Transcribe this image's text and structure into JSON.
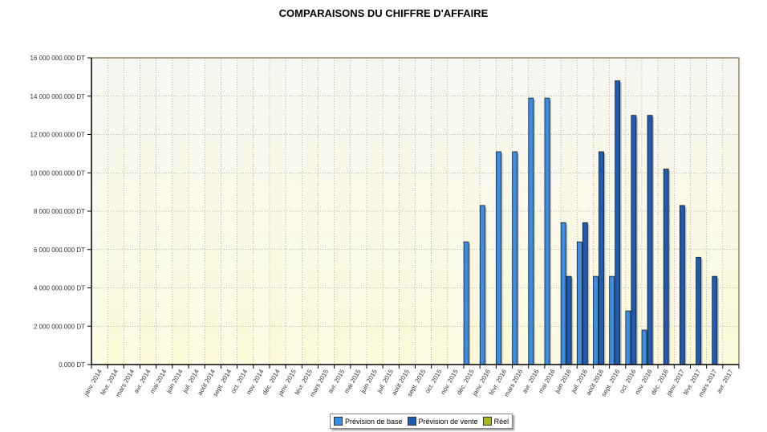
{
  "chart_data": {
    "type": "bar",
    "title": "COMPARAISONS DU CHIFFRE D'AFFAIRE",
    "xlabel": "",
    "ylabel": "",
    "ylim": [
      0,
      16000000000
    ],
    "yticks": [
      {
        "value": 0,
        "label": "0.000 DT"
      },
      {
        "value": 2000000000,
        "label": "2 000 000.000 DT"
      },
      {
        "value": 4000000000,
        "label": "4 000 000.000 DT"
      },
      {
        "value": 6000000000,
        "label": "6 000 000.000 DT"
      },
      {
        "value": 8000000000,
        "label": "8 000 000.000 DT"
      },
      {
        "value": 10000000000,
        "label": "10 000 000.000 DT"
      },
      {
        "value": 12000000000,
        "label": "12 000 000.000 DT"
      },
      {
        "value": 14000000000,
        "label": "14 000 000.000 DT"
      },
      {
        "value": 16000000000,
        "label": "16 000 000.000 DT"
      }
    ],
    "grid": true,
    "legend_position": "bottom",
    "categories": [
      "janv. 2014",
      "févr. 2014",
      "mars 2014",
      "avr. 2014",
      "mai 2014",
      "juin 2014",
      "juil. 2014",
      "août 2014",
      "sept. 2014",
      "oct. 2014",
      "nov. 2014",
      "déc. 2014",
      "janv. 2015",
      "févr. 2015",
      "mars 2015",
      "avr. 2015",
      "mai 2015",
      "juin 2015",
      "juil. 2015",
      "août 2015",
      "sept. 2015",
      "oct. 2015",
      "nov. 2015",
      "déc. 2015",
      "janv. 2016",
      "févr. 2016",
      "mars 2016",
      "avr. 2016",
      "mai 2016",
      "juin 2016",
      "juil. 2016",
      "août 2016",
      "sept. 2016",
      "oct. 2016",
      "nov. 2016",
      "déc. 2016",
      "janv. 2017",
      "févr. 2017",
      "mars 2017",
      "avr. 2017"
    ],
    "series": [
      {
        "name": "Prévision de base",
        "color": "#3b8ee6",
        "values": [
          0,
          0,
          0,
          0,
          0,
          0,
          0,
          0,
          0,
          0,
          0,
          0,
          0,
          0,
          0,
          0,
          0,
          0,
          0,
          0,
          0,
          0,
          0,
          6400000000,
          8300000000,
          11100000000,
          11100000000,
          13900000000,
          13900000000,
          7400000000,
          6400000000,
          4600000000,
          4600000000,
          2800000000,
          1800000000,
          0,
          0,
          0,
          0,
          0
        ]
      },
      {
        "name": "Prévision de vente",
        "color": "#1f5bb5",
        "values": [
          0,
          0,
          0,
          0,
          0,
          0,
          0,
          0,
          0,
          0,
          0,
          0,
          0,
          0,
          0,
          0,
          0,
          0,
          0,
          0,
          0,
          0,
          0,
          0,
          0,
          0,
          0,
          0,
          0,
          4600000000,
          7400000000,
          11100000000,
          14800000000,
          13000000000,
          13000000000,
          10200000000,
          8300000000,
          5600000000,
          4600000000,
          0
        ]
      },
      {
        "name": "Réel",
        "color": "#a8b81e",
        "values": [
          0,
          0,
          0,
          0,
          0,
          0,
          0,
          0,
          0,
          0,
          0,
          0,
          0,
          0,
          0,
          0,
          0,
          0,
          0,
          0,
          0,
          0,
          0,
          0,
          0,
          0,
          0,
          0,
          0,
          0,
          0,
          0,
          0,
          0,
          0,
          0,
          0,
          0,
          0,
          0
        ]
      }
    ]
  }
}
